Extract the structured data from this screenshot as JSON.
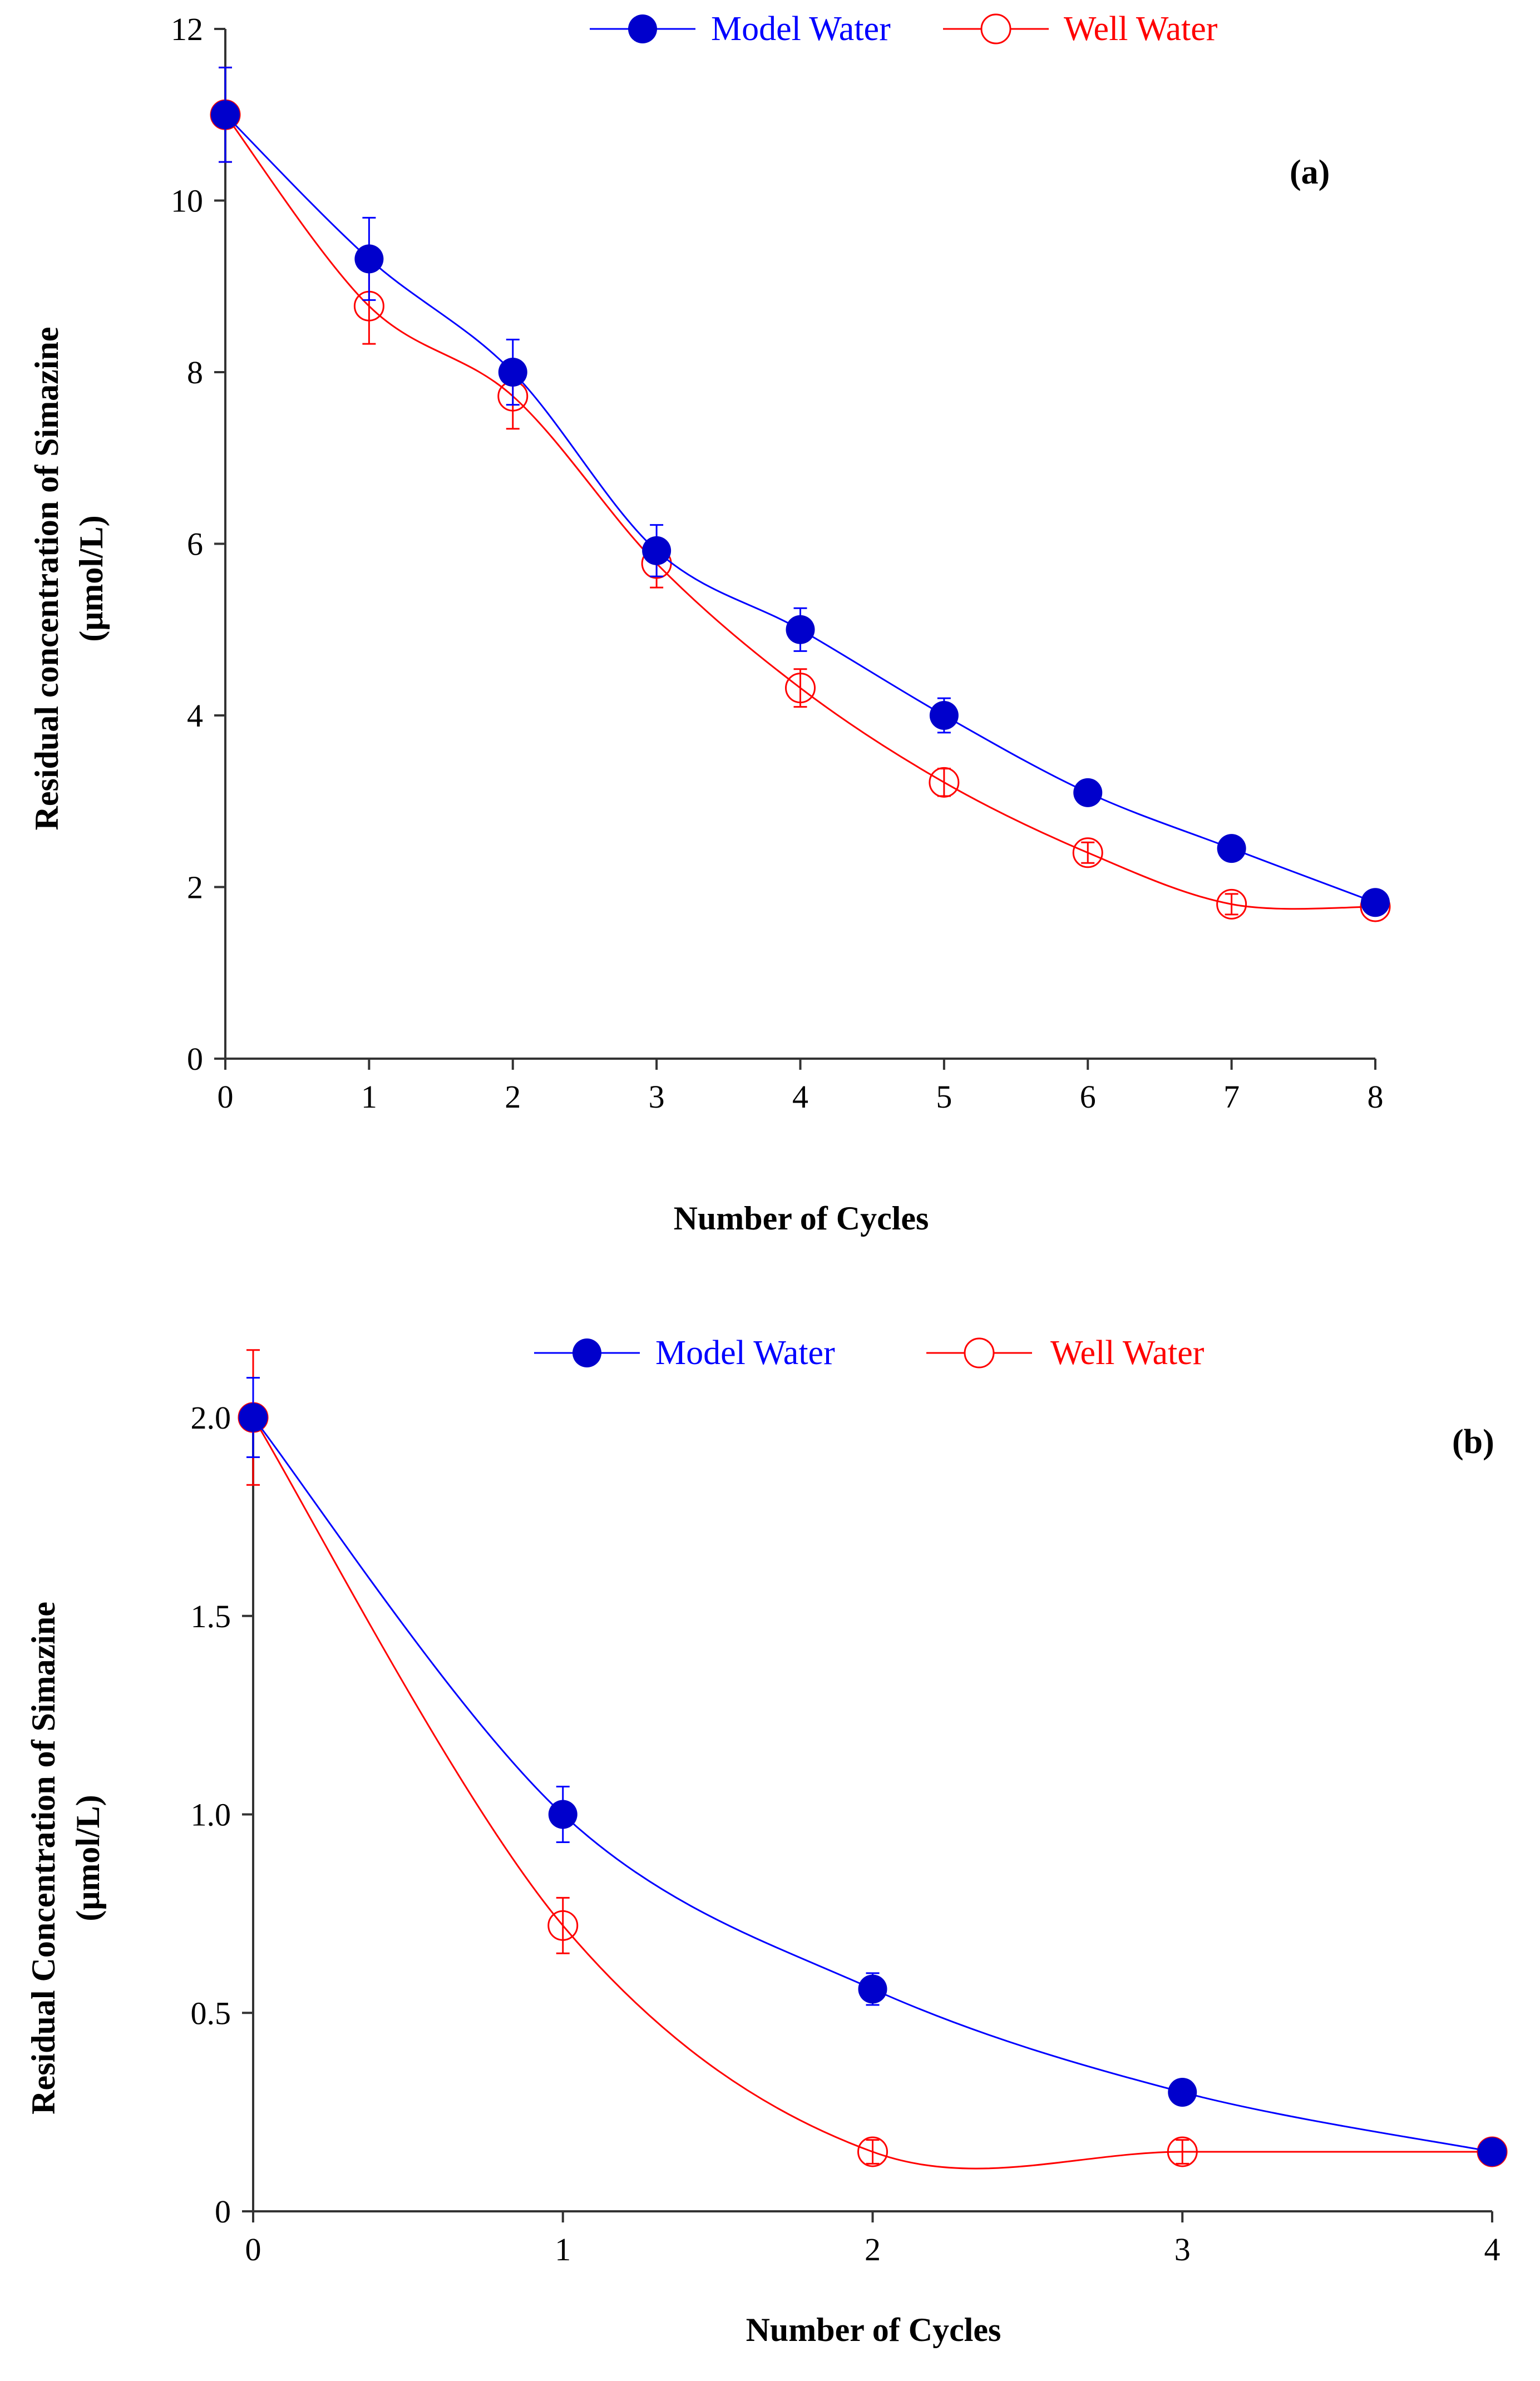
{
  "chart_data": [
    {
      "type": "line",
      "panel_label": "(a)",
      "xlabel": "Number of Cycles",
      "ylabel": [
        "Residual concentration of Simazine",
        "(μmol/L)"
      ],
      "xlim": [
        0,
        8
      ],
      "ylim": [
        0,
        12
      ],
      "x_ticks": [
        "0",
        "1",
        "2",
        "3",
        "4",
        "5",
        "6",
        "7",
        "8"
      ],
      "y_ticks": [
        "0",
        "2",
        "4",
        "6",
        "8",
        "10",
        "12"
      ],
      "legend_position": "top",
      "series": [
        {
          "name": "Model Water",
          "color": "#0000ff",
          "marker": "filled-circle",
          "x": [
            0,
            1,
            2,
            3,
            4,
            5,
            6,
            7,
            8
          ],
          "values": [
            11.0,
            9.32,
            8.0,
            5.92,
            5.0,
            4.0,
            3.1,
            2.45,
            1.82
          ],
          "errors": [
            0.55,
            0.48,
            0.38,
            0.3,
            0.25,
            0.2,
            0.12,
            0.1,
            0.1
          ]
        },
        {
          "name": "Well Water",
          "color": "#ff0000",
          "marker": "open-circle",
          "x": [
            0,
            1,
            2,
            3,
            4,
            5,
            6,
            7,
            8
          ],
          "values": [
            11.0,
            8.77,
            7.72,
            5.77,
            4.32,
            3.22,
            2.4,
            1.8,
            1.77
          ],
          "errors": [
            0.55,
            0.44,
            0.38,
            0.28,
            0.22,
            0.16,
            0.12,
            0.12,
            0.08
          ]
        }
      ]
    },
    {
      "type": "line",
      "panel_label": "(b)",
      "xlabel": "Number of Cycles",
      "ylabel": [
        "Residual Concentration of Simazine",
        "(μmol/L)"
      ],
      "xlim": [
        0,
        4
      ],
      "ylim": [
        0,
        2.0
      ],
      "x_ticks": [
        "0",
        "1",
        "2",
        "3",
        "4"
      ],
      "y_ticks": [
        "0",
        "0.5",
        "1.0",
        "1.5",
        "2.0"
      ],
      "legend_position": "top",
      "series": [
        {
          "name": "Model Water",
          "color": "#0000ff",
          "marker": "filled-circle",
          "x": [
            0,
            1,
            2,
            3,
            4
          ],
          "values": [
            2.0,
            1.0,
            0.56,
            0.3,
            0.15
          ],
          "errors": [
            0.1,
            0.07,
            0.04,
            0.02,
            0.01
          ]
        },
        {
          "name": "Well Water",
          "color": "#ff0000",
          "marker": "open-circle",
          "x": [
            0,
            1,
            2,
            3,
            4
          ],
          "values": [
            2.0,
            0.72,
            0.15,
            0.15,
            0.15
          ],
          "errors": [
            0.17,
            0.07,
            0.03,
            0.03,
            0.01
          ]
        }
      ]
    }
  ]
}
